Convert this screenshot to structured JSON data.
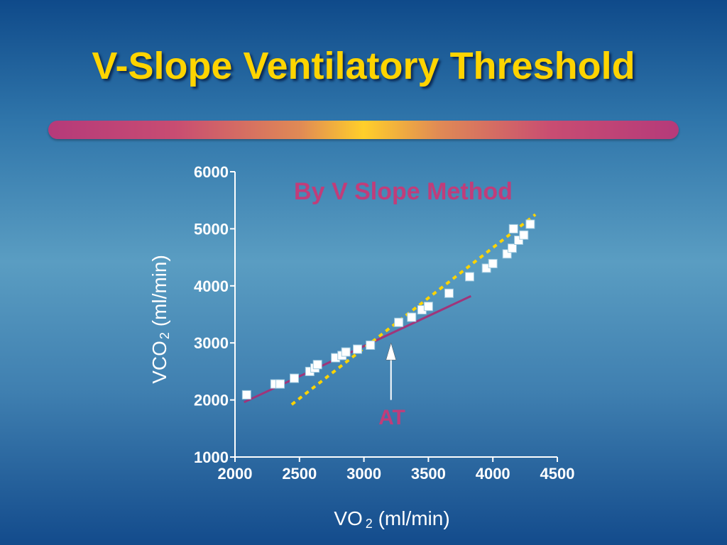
{
  "slide": {
    "title": "V-Slope Ventilatory Threshold",
    "title_color": "#ffd400"
  },
  "chart_data": {
    "type": "scatter",
    "title": "",
    "xlabel": "VO",
    "xlabel_sub": "2",
    "xlabel_unit": " (ml/min)",
    "ylabel": "VCO",
    "ylabel_sub": "2",
    "ylabel_unit": " (ml/min)",
    "xlim": [
      2000,
      4500
    ],
    "ylim": [
      1000,
      6000
    ],
    "xticks": [
      "2000",
      "2500",
      "3000",
      "3500",
      "4000",
      "4500"
    ],
    "yticks": [
      "1000",
      "2000",
      "3000",
      "4000",
      "5000",
      "6000"
    ],
    "grid": false,
    "series": [
      {
        "marker": "square",
        "color": "#ffffff",
        "x": [
          2090,
          2310,
          2350,
          2460,
          2580,
          2620,
          2640,
          2780,
          2830,
          2860,
          2950,
          3050,
          3270,
          3370,
          3450,
          3500,
          3660,
          3820,
          3950,
          4000,
          4110,
          4150,
          4160,
          4200,
          4240,
          4290
        ],
        "y": [
          2090,
          2280,
          2280,
          2380,
          2500,
          2560,
          2620,
          2740,
          2780,
          2840,
          2890,
          2960,
          3360,
          3450,
          3580,
          3640,
          3870,
          4160,
          4310,
          4390,
          4560,
          4660,
          5000,
          4800,
          4890,
          5080
        ]
      }
    ],
    "lines": [
      {
        "style": "solid",
        "color": "#a0357a",
        "x": [
          2070,
          3830
        ],
        "y": [
          1960,
          3820
        ]
      },
      {
        "style": "dotted",
        "color": "#ffd400",
        "x": [
          2440,
          4330
        ],
        "y": [
          1920,
          5250
        ]
      }
    ],
    "annotations": {
      "method": "By V Slope Method",
      "at": "AT",
      "at_arrow_color": "#ffffff",
      "at_x": 3210,
      "at_y_tip": 3000,
      "at_y_tail": 2000
    }
  }
}
